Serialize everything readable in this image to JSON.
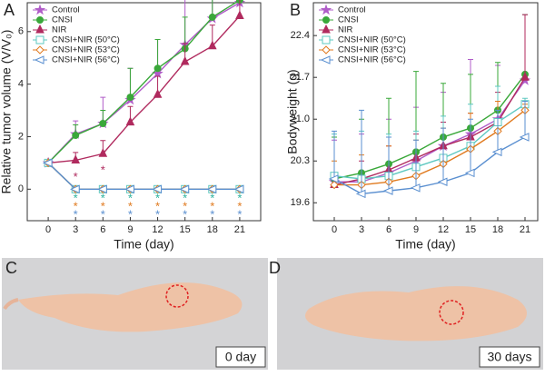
{
  "chart_data": [
    {
      "type": "line",
      "panel_label": "A",
      "x_label": "Time (day)",
      "y_label": "Relative tumor volume (V/V₀)",
      "x": [
        0,
        3,
        6,
        9,
        12,
        15,
        18,
        21
      ],
      "xlim": [
        -2.3,
        23.3
      ],
      "xticks": [
        0,
        3,
        6,
        9,
        12,
        15,
        18,
        21
      ],
      "ylim": [
        -1.2,
        7.1
      ],
      "yticks": [
        0,
        2,
        4,
        6
      ],
      "series": [
        {
          "name": "Control",
          "color": "#b05cc8",
          "marker": "star",
          "values": [
            1,
            2.1,
            2.5,
            3.4,
            4.4,
            5.5,
            6.5,
            7.1
          ],
          "errors": [
            0.1,
            0.5,
            1.0,
            1.2,
            1.3,
            2.0,
            2.1,
            1.8
          ]
        },
        {
          "name": "CNSI",
          "color": "#3aa83a",
          "marker": "circle",
          "values": [
            1,
            2.05,
            2.5,
            3.5,
            4.6,
            5.35,
            6.55,
            7.2
          ],
          "errors": [
            0.1,
            0.4,
            0.5,
            1.1,
            1.1,
            1.2,
            1.2,
            1.8
          ]
        },
        {
          "name": "NIR",
          "color": "#b02a5e",
          "marker": "triangle",
          "values": [
            1,
            1.1,
            1.35,
            2.55,
            3.6,
            4.85,
            5.45,
            6.6
          ],
          "errors": [
            0.1,
            0.3,
            0.5,
            0.6,
            0.7,
            0.7,
            0.8,
            0.8
          ]
        },
        {
          "name": "CNSI+NIR (50°C)",
          "color": "#5ec8c0",
          "marker": "square",
          "values": [
            1,
            0,
            0,
            0,
            0,
            0,
            0,
            0
          ]
        },
        {
          "name": "CNSI+NIR (53°C)",
          "color": "#e07a1f",
          "marker": "diamond",
          "values": [
            1,
            0,
            0,
            0,
            0,
            0,
            0,
            0
          ]
        },
        {
          "name": "CNSI+NIR (56°C)",
          "color": "#5a8fd0",
          "marker": "ltri",
          "values": [
            1,
            0,
            0,
            0,
            0,
            0,
            0,
            0
          ]
        }
      ],
      "annotations": [
        {
          "text": "*",
          "color": "#b02a5e",
          "x": [
            3,
            6
          ]
        },
        {
          "text": "*",
          "color": "#2bb3a0",
          "x": [
            3,
            6,
            9,
            12,
            15,
            18,
            21
          ]
        },
        {
          "text": "*",
          "color": "#e07a1f",
          "x": [
            3,
            6,
            9,
            12,
            15,
            18,
            21
          ]
        },
        {
          "text": "*",
          "color": "#5a8fd0",
          "x": [
            3,
            6,
            9,
            12,
            15,
            18,
            21
          ]
        }
      ]
    },
    {
      "type": "line",
      "panel_label": "B",
      "x_label": "Time (day)",
      "y_label": "Bodyweight (g)",
      "x": [
        0,
        3,
        6,
        9,
        12,
        15,
        18,
        21
      ],
      "xlim": [
        -2.3,
        22.4
      ],
      "xticks": [
        0,
        3,
        6,
        9,
        12,
        15,
        18,
        21
      ],
      "ylim": [
        19.3,
        22.95
      ],
      "yticks": [
        19.6,
        20.3,
        {
          "value": 21,
          "label": "21.0"
        },
        21.7,
        22.4
      ],
      "series": [
        {
          "name": "Control",
          "color": "#b05cc8",
          "marker": "star",
          "values": [
            19.95,
            19.95,
            20.1,
            20.3,
            20.55,
            20.75,
            21.0,
            21.65
          ],
          "errors": [
            0.7,
            0.8,
            0.9,
            0.9,
            0.9,
            1.25,
            0.9,
            1.1
          ]
        },
        {
          "name": "CNSI",
          "color": "#3aa83a",
          "marker": "circle",
          "values": [
            20.0,
            20.1,
            20.25,
            20.45,
            20.7,
            20.85,
            21.15,
            21.75
          ],
          "errors": [
            0.7,
            0.9,
            1.1,
            1.35,
            0.9,
            0.9,
            0.8,
            1.0
          ]
        },
        {
          "name": "NIR",
          "color": "#b02a5e",
          "marker": "triangle",
          "values": [
            19.9,
            20.0,
            20.15,
            20.35,
            20.55,
            20.7,
            20.95,
            21.7
          ],
          "errors": [
            0.2,
            0.3,
            0.4,
            0.4,
            0.4,
            0.4,
            0.5,
            1.05
          ]
        },
        {
          "name": "CNSI+NIR (50°C)",
          "color": "#5ec8c0",
          "marker": "square",
          "values": [
            20.05,
            20.0,
            20.05,
            20.2,
            20.35,
            20.55,
            20.95,
            21.25
          ],
          "errors": [
            0.7,
            0.8,
            0.7,
            0.6,
            0.7,
            0.7,
            0.6,
            0.1
          ]
        },
        {
          "name": "CNSI+NIR (53°C)",
          "color": "#e07a1f",
          "marker": "diamond",
          "values": [
            19.9,
            19.9,
            19.95,
            20.05,
            20.25,
            20.5,
            20.8,
            21.15
          ],
          "errors": [
            0.4,
            0.5,
            0.6,
            0.6,
            0.6,
            0.6,
            0.5,
            0.1
          ]
        },
        {
          "name": "CNSI+NIR (56°C)",
          "color": "#5a8fd0",
          "marker": "ltri",
          "values": [
            20.0,
            19.75,
            19.8,
            19.85,
            19.95,
            20.1,
            20.45,
            20.7
          ],
          "errors": [
            0.8,
            1.4,
            0.9,
            0.8,
            0.9,
            0.9,
            0.7,
            0.6
          ]
        }
      ]
    }
  ],
  "photos": [
    {
      "label": "C",
      "caption": "0 day"
    },
    {
      "label": "D",
      "caption": "30 days"
    }
  ]
}
